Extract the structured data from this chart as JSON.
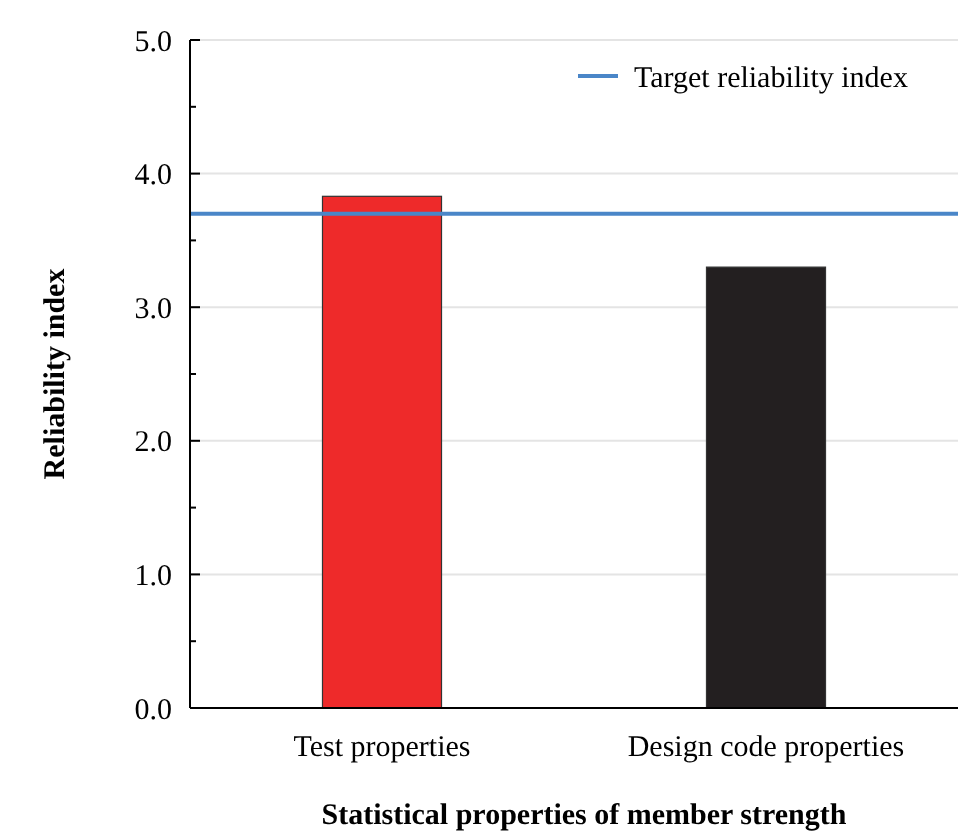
{
  "chart_data": {
    "type": "bar",
    "xlabel": "Statistical properties of member strength",
    "ylabel": "Reliability index",
    "categories": [
      "Test properties",
      "Design code properties"
    ],
    "values": [
      3.83,
      3.3
    ],
    "colors": [
      "#ee2a2a",
      "#231f20"
    ],
    "ylim": [
      0,
      5
    ],
    "yticks": [
      {
        "value": 0,
        "label": "0.0"
      },
      {
        "value": 0.5,
        "label": null
      },
      {
        "value": 1,
        "label": "1.0"
      },
      {
        "value": 1.5,
        "label": null
      },
      {
        "value": 2,
        "label": "2.0"
      },
      {
        "value": 2.5,
        "label": null
      },
      {
        "value": 3,
        "label": "3.0"
      },
      {
        "value": 3.5,
        "label": null
      },
      {
        "value": 4,
        "label": "4.0"
      },
      {
        "value": 4.5,
        "label": null
      },
      {
        "value": 5,
        "label": "5.0"
      }
    ],
    "grid": "y",
    "ref_lines": [
      {
        "axis": "y",
        "value": 3.7,
        "label": "Target reliability index",
        "color": "#4a86c8"
      }
    ],
    "legend": "top right"
  }
}
